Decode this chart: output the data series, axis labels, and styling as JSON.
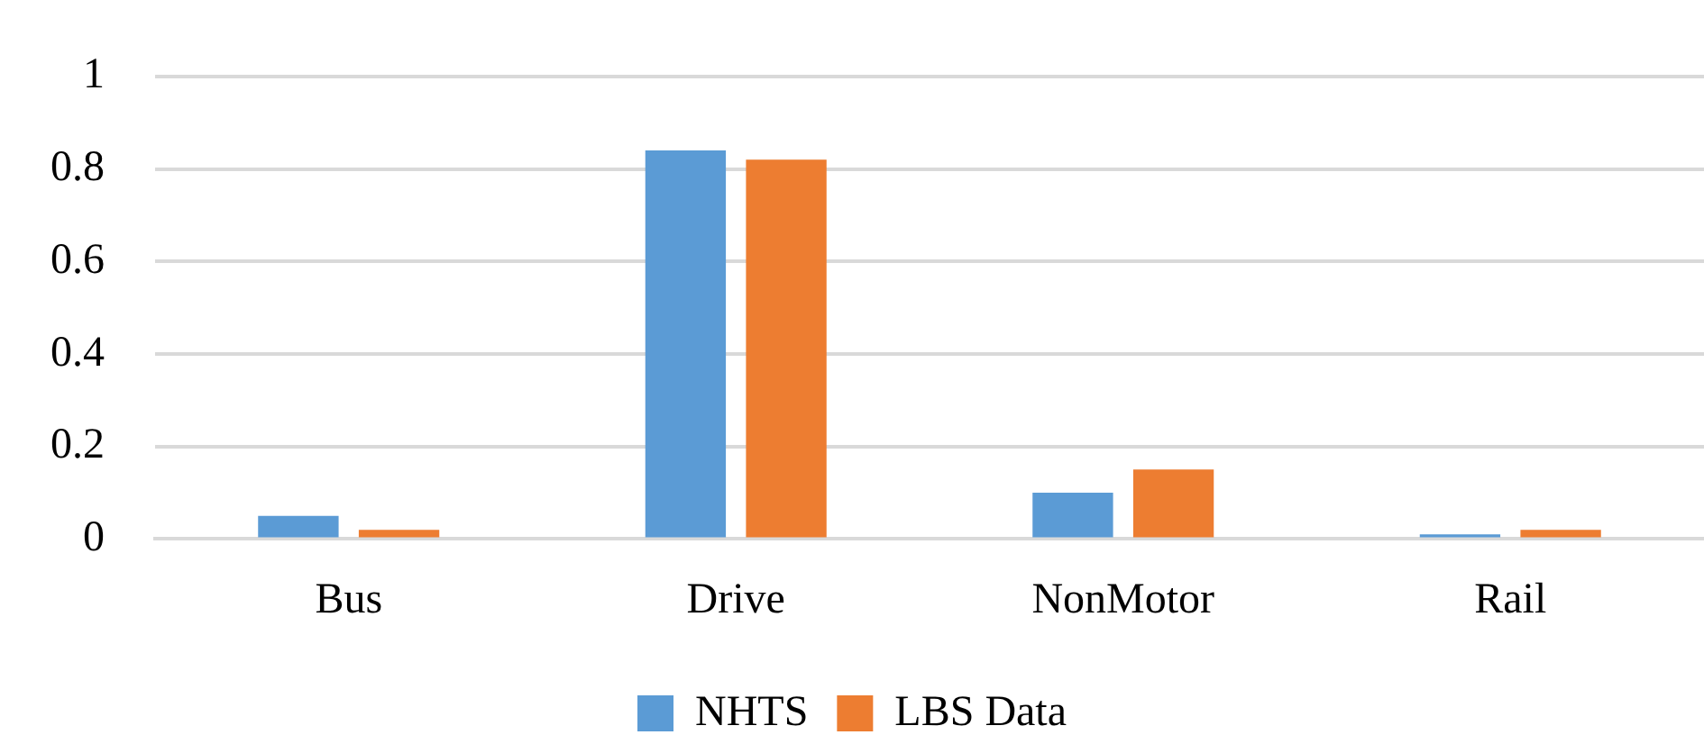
{
  "chart_data": {
    "type": "bar",
    "categories": [
      "Bus",
      "Drive",
      "NonMotor",
      "Rail"
    ],
    "series": [
      {
        "name": "NHTS",
        "color": "#5b9bd5",
        "values": [
          0.05,
          0.84,
          0.1,
          0.01
        ]
      },
      {
        "name": "LBS Data",
        "color": "#ed7d31",
        "values": [
          0.02,
          0.82,
          0.15,
          0.02
        ]
      }
    ],
    "ylim": [
      0,
      1
    ],
    "yticks": [
      0,
      0.2,
      0.4,
      0.6,
      0.8,
      1
    ],
    "grid": "y",
    "legend": "bottom"
  }
}
